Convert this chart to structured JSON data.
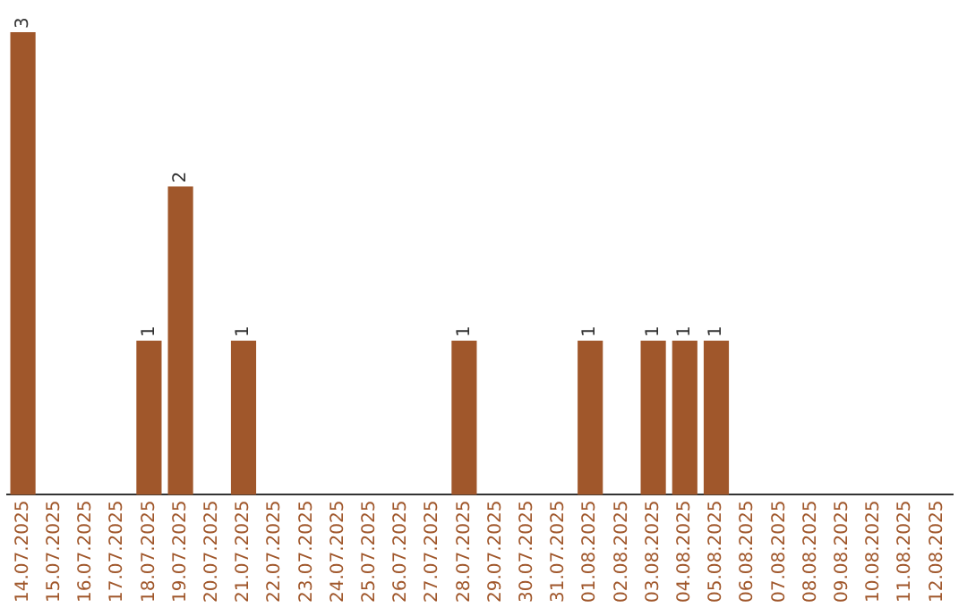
{
  "chart_data": {
    "type": "bar",
    "categories": [
      "14.07.2025",
      "15.07.2025",
      "16.07.2025",
      "17.07.2025",
      "18.07.2025",
      "19.07.2025",
      "20.07.2025",
      "21.07.2025",
      "22.07.2025",
      "23.07.2025",
      "24.07.2025",
      "25.07.2025",
      "26.07.2025",
      "27.07.2025",
      "28.07.2025",
      "29.07.2025",
      "30.07.2025",
      "31.07.2025",
      "01.08.2025",
      "02.08.2025",
      "03.08.2025",
      "04.08.2025",
      "05.08.2025",
      "06.08.2025",
      "07.08.2025",
      "08.08.2025",
      "09.08.2025",
      "10.08.2025",
      "11.08.2025",
      "12.08.2025"
    ],
    "values": [
      3,
      0,
      0,
      0,
      1,
      2,
      0,
      1,
      0,
      0,
      0,
      0,
      0,
      0,
      1,
      0,
      0,
      0,
      1,
      0,
      1,
      1,
      1,
      0,
      0,
      0,
      0,
      0,
      0,
      0
    ],
    "value_labels": [
      "3",
      null,
      null,
      null,
      "1",
      "2",
      null,
      "1",
      null,
      null,
      null,
      null,
      null,
      null,
      "1",
      null,
      null,
      null,
      "1",
      null,
      "1",
      "1",
      "1",
      null,
      null,
      null,
      null,
      null,
      null,
      null
    ],
    "color": "#a0572b",
    "grid": false,
    "legend": false,
    "tick_labels": "x"
  }
}
